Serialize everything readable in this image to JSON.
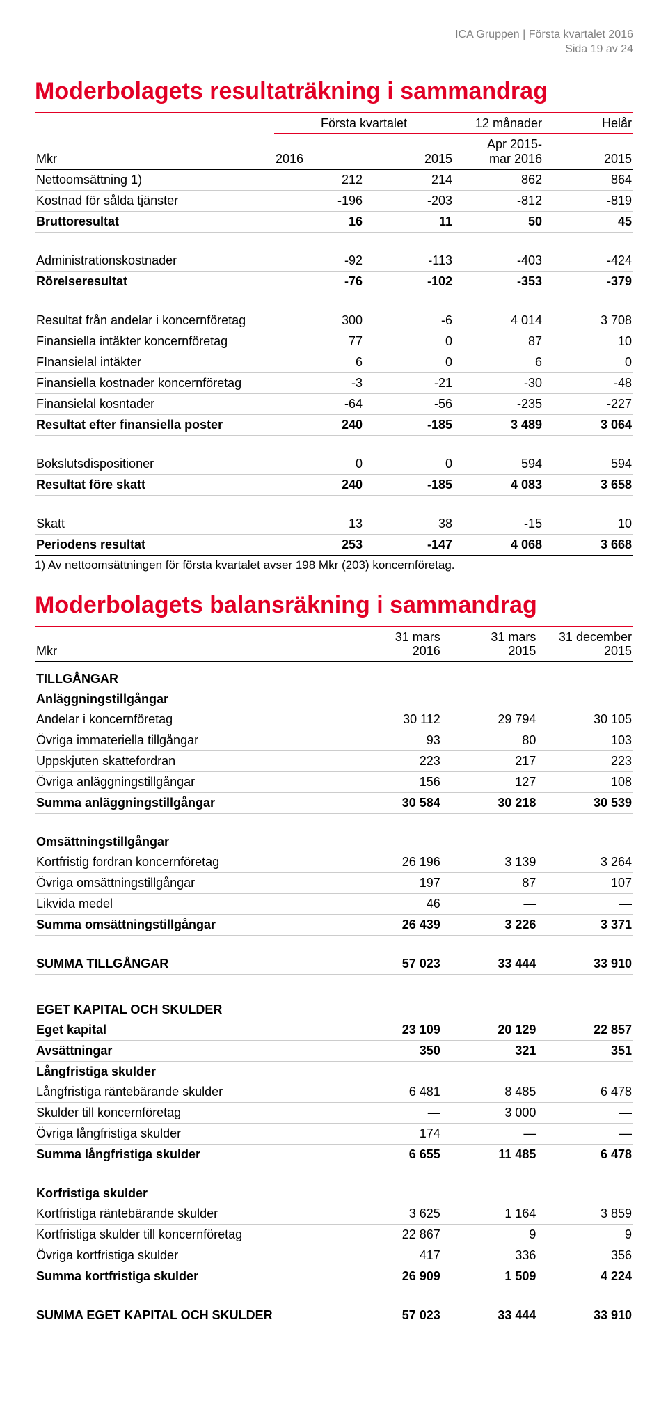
{
  "header": {
    "line1": "ICA Gruppen | Första kvartalet 2016",
    "line2": "Sida 19 av 24"
  },
  "table1": {
    "title": "Moderbolagets resultaträkning i sammandrag",
    "head": {
      "super": [
        "",
        "Första kvartalet",
        "12 månader",
        "Helår"
      ],
      "cols": [
        "Mkr",
        "2016",
        "2015",
        "Apr 2015-\nmar 2016",
        "2015"
      ]
    },
    "rows": [
      {
        "l": "Nettoomsättning 1)",
        "v": [
          "212",
          "214",
          "862",
          "864"
        ]
      },
      {
        "l": "Kostnad för sålda tjänster",
        "v": [
          "-196",
          "-203",
          "-812",
          "-819"
        ]
      },
      {
        "l": "Bruttoresultat",
        "v": [
          "16",
          "11",
          "50",
          "45"
        ],
        "bold": true
      },
      {
        "gap": true
      },
      {
        "l": "Administrationskostnader",
        "v": [
          "-92",
          "-113",
          "-403",
          "-424"
        ]
      },
      {
        "l": "Rörelseresultat",
        "v": [
          "-76",
          "-102",
          "-353",
          "-379"
        ],
        "bold": true
      },
      {
        "gap": true
      },
      {
        "l": "Resultat från andelar i koncernföretag",
        "v": [
          "300",
          "-6",
          "4 014",
          "3 708"
        ]
      },
      {
        "l": "Finansiella intäkter koncernföretag",
        "v": [
          "77",
          "0",
          "87",
          "10"
        ]
      },
      {
        "l": "FInansielal intäkter",
        "v": [
          "6",
          "0",
          "6",
          "0"
        ]
      },
      {
        "l": "Finansiella kostnader koncernföretag",
        "v": [
          "-3",
          "-21",
          "-30",
          "-48"
        ]
      },
      {
        "l": "Finansielal kosntader",
        "v": [
          "-64",
          "-56",
          "-235",
          "-227"
        ]
      },
      {
        "l": "Resultat efter finansiella poster",
        "v": [
          "240",
          "-185",
          "3 489",
          "3 064"
        ],
        "bold": true
      },
      {
        "gap": true
      },
      {
        "l": "Bokslutsdispositioner",
        "v": [
          "0",
          "0",
          "594",
          "594"
        ]
      },
      {
        "l": "Resultat före skatt",
        "v": [
          "240",
          "-185",
          "4 083",
          "3 658"
        ],
        "bold": true
      },
      {
        "gap": true
      },
      {
        "l": "Skatt",
        "v": [
          "13",
          "38",
          "-15",
          "10"
        ]
      },
      {
        "l": "Periodens resultat",
        "v": [
          "253",
          "-147",
          "4 068",
          "3 668"
        ],
        "bold": true,
        "last": true
      }
    ],
    "note": "1) Av nettoomsättningen för första kvartalet avser 198 Mkr (203) koncernföretag."
  },
  "table2": {
    "title": "Moderbolagets balansräkning i sammandrag",
    "head": {
      "cols": [
        "Mkr",
        "31 mars\n2016",
        "31 mars\n2015",
        "31 december\n2015"
      ]
    },
    "rows": [
      {
        "l": "TILLGÅNGAR",
        "section": true
      },
      {
        "l": "Anläggningstillgångar",
        "sub": true
      },
      {
        "l": "Andelar i koncernföretag",
        "v": [
          "30 112",
          "29 794",
          "30 105"
        ]
      },
      {
        "l": "Övriga immateriella tillgångar",
        "v": [
          "93",
          "80",
          "103"
        ]
      },
      {
        "l": "Uppskjuten skattefordran",
        "v": [
          "223",
          "217",
          "223"
        ]
      },
      {
        "l": "Övriga anläggningstillgångar",
        "v": [
          "156",
          "127",
          "108"
        ]
      },
      {
        "l": "Summa anläggningstillgångar",
        "v": [
          "30 584",
          "30 218",
          "30 539"
        ],
        "bold": true
      },
      {
        "gap": true
      },
      {
        "l": "Omsättningstillgångar",
        "sub": true
      },
      {
        "l": "Kortfristig fordran koncernföretag",
        "v": [
          "26 196",
          "3 139",
          "3 264"
        ]
      },
      {
        "l": "Övriga omsättningstillgångar",
        "v": [
          "197",
          "87",
          "107"
        ]
      },
      {
        "l": "Likvida medel",
        "v": [
          "46",
          "—",
          "—"
        ]
      },
      {
        "l": "Summa omsättningstillgångar",
        "v": [
          "26 439",
          "3 226",
          "3 371"
        ],
        "bold": true
      },
      {
        "gap": true
      },
      {
        "l": "SUMMA TILLGÅNGAR",
        "v": [
          "57 023",
          "33 444",
          "33 910"
        ],
        "bold": true
      },
      {
        "gap": true
      },
      {
        "l": "EGET KAPITAL OCH SKULDER",
        "section": true
      },
      {
        "l": "Eget kapital",
        "v": [
          "23 109",
          "20 129",
          "22 857"
        ],
        "bold": true
      },
      {
        "l": "Avsättningar",
        "v": [
          "350",
          "321",
          "351"
        ],
        "bold": true
      },
      {
        "l": "Långfristiga skulder",
        "sub": true
      },
      {
        "l": "Långfristiga räntebärande skulder",
        "v": [
          "6 481",
          "8 485",
          "6 478"
        ]
      },
      {
        "l": "Skulder till koncernföretag",
        "v": [
          "—",
          "3 000",
          "—"
        ]
      },
      {
        "l": "Övriga långfristiga skulder",
        "v": [
          "174",
          "—",
          "—"
        ]
      },
      {
        "l": "Summa långfristiga skulder",
        "v": [
          "6 655",
          "11 485",
          "6 478"
        ],
        "bold": true
      },
      {
        "gap": true
      },
      {
        "l": "Korfristiga skulder",
        "sub": true
      },
      {
        "l": "Kortfristiga räntebärande skulder",
        "v": [
          "3 625",
          "1 164",
          "3 859"
        ]
      },
      {
        "l": "Kortfristiga skulder till koncernföretag",
        "v": [
          "22 867",
          "9",
          "9"
        ]
      },
      {
        "l": "Övriga kortfristiga skulder",
        "v": [
          "417",
          "336",
          "356"
        ]
      },
      {
        "l": "Summa kortfristiga skulder",
        "v": [
          "26 909",
          "1 509",
          "4 224"
        ],
        "bold": true
      },
      {
        "gap": true
      },
      {
        "l": "SUMMA EGET KAPITAL OCH SKULDER",
        "v": [
          "57 023",
          "33 444",
          "33 910"
        ],
        "bold": true,
        "last": true
      }
    ]
  }
}
